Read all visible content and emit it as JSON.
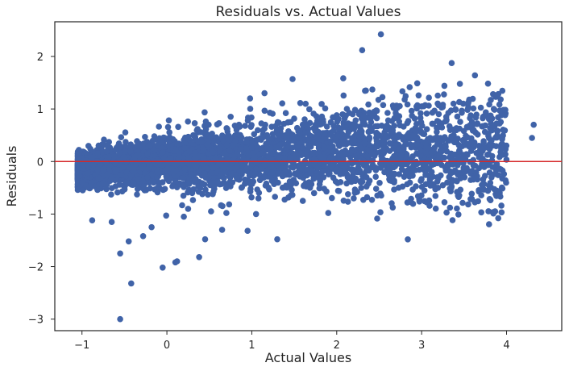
{
  "chart_data": {
    "type": "scatter",
    "title": "Residuals vs. Actual Values",
    "xlabel": "Actual Values",
    "ylabel": "Residuals",
    "xlim": [
      -1.32,
      4.65
    ],
    "ylim": [
      -3.22,
      2.66
    ],
    "xticks": [
      -1,
      0,
      1,
      2,
      3,
      4
    ],
    "yticks": [
      -3,
      -2,
      -1,
      0,
      1,
      2
    ],
    "grid": false,
    "reference_line": {
      "y": 0,
      "color": "#d62728"
    },
    "point_color": "#4063a8",
    "series": [
      {
        "name": "residuals",
        "points": [
          [
            -0.55,
            -3.0
          ],
          [
            -0.42,
            -2.32
          ],
          [
            -0.05,
            -2.02
          ],
          [
            0.1,
            -1.92
          ],
          [
            0.12,
            -1.9
          ],
          [
            0.38,
            -1.82
          ],
          [
            -0.55,
            -1.75
          ],
          [
            -0.45,
            -1.52
          ],
          [
            0.45,
            -1.48
          ],
          [
            1.3,
            -1.48
          ],
          [
            0.65,
            -1.3
          ],
          [
            0.95,
            -1.32
          ],
          [
            0.2,
            -1.05
          ],
          [
            -0.28,
            -1.42
          ],
          [
            1.9,
            -0.98
          ],
          [
            2.3,
            2.12
          ],
          [
            2.52,
            2.42
          ],
          [
            2.42,
            1.37
          ],
          [
            1.48,
            1.57
          ],
          [
            3.45,
            1.48
          ],
          [
            1.15,
            1.3
          ],
          [
            0.98,
            1.2
          ],
          [
            2.8,
            1.18
          ],
          [
            2.95,
            1.07
          ],
          [
            3.25,
            1.08
          ],
          [
            3.0,
            1.05
          ],
          [
            3.85,
            1.0
          ],
          [
            3.92,
            0.97
          ],
          [
            2.67,
            1.02
          ],
          [
            2.12,
            1.0
          ],
          [
            4.32,
            0.7
          ],
          [
            4.3,
            0.45
          ],
          [
            3.92,
            -0.14
          ],
          [
            3.05,
            -0.43
          ],
          [
            3.28,
            0.3
          ],
          [
            3.52,
            0.12
          ],
          [
            2.73,
            -0.5
          ],
          [
            1.6,
            -0.75
          ],
          [
            2.7,
            0.88
          ],
          [
            0.25,
            -0.9
          ],
          [
            -0.88,
            -1.12
          ],
          [
            -0.65,
            -1.15
          ],
          [
            2.2,
            -0.7
          ],
          [
            1.75,
            0.7
          ],
          [
            3.62,
            0.32
          ],
          [
            3.1,
            0.45
          ],
          [
            2.35,
            -0.3
          ],
          [
            0.52,
            -0.95
          ],
          [
            -0.18,
            -1.25
          ],
          [
            1.05,
            -1.0
          ]
        ]
      }
    ],
    "cloud_description_data": {
      "count": 4200,
      "seed": 7,
      "x_min": -1.05,
      "x_max": 4.0,
      "spread_slope": 0.16,
      "spread_base": 0.14,
      "skew_down": -0.15
    }
  }
}
